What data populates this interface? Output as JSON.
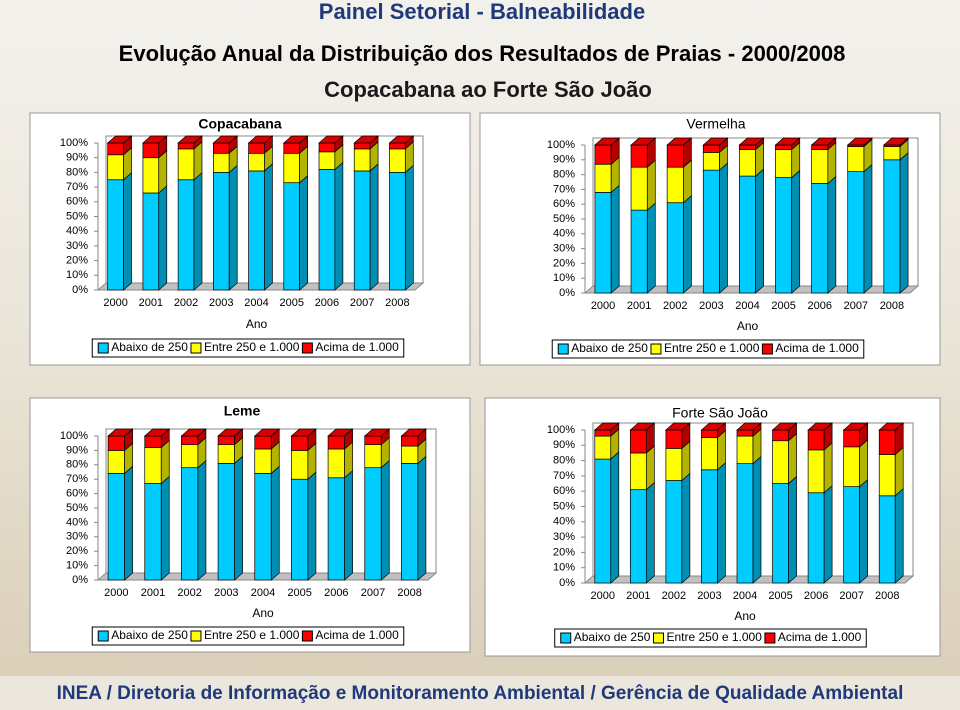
{
  "header": {
    "banner": "Painel Setorial - Balneabilidade",
    "title": "Evolução Anual da Distribuição dos Resultados de Praias - 2000/2008",
    "subtitle": "Copacabana ao Forte São João"
  },
  "footer": "INEA / Diretoria de Informação e Monitoramento Ambiental / Gerência de Qualidade Ambiental",
  "chart_data": [
    {
      "type": "bar",
      "stacked": true,
      "title": "Copacabana",
      "x_label": "Ano",
      "categories": [
        "2000",
        "2001",
        "2002",
        "2003",
        "2004",
        "2005",
        "2006",
        "2007",
        "2008"
      ],
      "series": [
        {
          "name": "Abaixo de 250",
          "color": "#00ccff",
          "values": [
            75,
            66,
            75,
            80,
            81,
            73,
            82,
            81,
            80
          ]
        },
        {
          "name": "Entre 250 e 1.000",
          "color": "#ffff00",
          "values": [
            17,
            24,
            21,
            13,
            12,
            20,
            12,
            15,
            16
          ]
        },
        {
          "name": "Acima de 1.000",
          "color": "#ff0000",
          "values": [
            8,
            10,
            4,
            7,
            7,
            7,
            6,
            4,
            4
          ]
        }
      ],
      "ylim": [
        0,
        100
      ],
      "yticks": [
        {
          "value": 0,
          "label": "0%"
        },
        {
          "value": 10,
          "label": "10%"
        },
        {
          "value": 20,
          "label": "20%"
        },
        {
          "value": 30,
          "label": "30%"
        },
        {
          "value": 40,
          "label": "40%"
        },
        {
          "value": 50,
          "label": "50%"
        },
        {
          "value": 60,
          "label": "60%"
        },
        {
          "value": 70,
          "label": "70%"
        },
        {
          "value": 80,
          "label": "80%"
        },
        {
          "value": 90,
          "label": "90%"
        },
        {
          "value": 100,
          "label": "100%"
        }
      ],
      "legend": "bottom"
    },
    {
      "type": "bar",
      "stacked": true,
      "title": "Vermelha",
      "x_label": "Ano",
      "categories": [
        "2000",
        "2001",
        "2002",
        "2003",
        "2004",
        "2005",
        "2006",
        "2007",
        "2008"
      ],
      "series": [
        {
          "name": "Abaixo de 250",
          "color": "#00ccff",
          "values": [
            68,
            56,
            61,
            83,
            79,
            78,
            74,
            82,
            90
          ]
        },
        {
          "name": "Entre 250 e 1.000",
          "color": "#ffff00",
          "values": [
            19,
            29,
            24,
            12,
            18,
            19,
            23,
            17,
            9
          ]
        },
        {
          "name": "Acima de 1.000",
          "color": "#ff0000",
          "values": [
            13,
            15,
            15,
            5,
            3,
            3,
            3,
            1,
            1
          ]
        }
      ],
      "ylim": [
        0,
        100
      ],
      "yticks": [
        {
          "value": 0,
          "label": "0%"
        },
        {
          "value": 10,
          "label": "10%"
        },
        {
          "value": 20,
          "label": "20%"
        },
        {
          "value": 30,
          "label": "30%"
        },
        {
          "value": 40,
          "label": "40%"
        },
        {
          "value": 50,
          "label": "50%"
        },
        {
          "value": 60,
          "label": "60%"
        },
        {
          "value": 70,
          "label": "70%"
        },
        {
          "value": 80,
          "label": "80%"
        },
        {
          "value": 90,
          "label": "90%"
        },
        {
          "value": 100,
          "label": "100%"
        }
      ],
      "legend": "bottom"
    },
    {
      "type": "bar",
      "stacked": true,
      "title": "Leme",
      "x_label": "Ano",
      "categories": [
        "2000",
        "2001",
        "2002",
        "2003",
        "2004",
        "2005",
        "2006",
        "2007",
        "2008"
      ],
      "series": [
        {
          "name": "Abaixo de 250",
          "color": "#00ccff",
          "values": [
            74,
            67,
            78,
            81,
            74,
            70,
            71,
            78,
            81
          ]
        },
        {
          "name": "Entre 250 e 1.000",
          "color": "#ffff00",
          "values": [
            16,
            25,
            16,
            13,
            17,
            20,
            20,
            16,
            12
          ]
        },
        {
          "name": "Acima de 1.000",
          "color": "#ff0000",
          "values": [
            10,
            8,
            6,
            6,
            9,
            10,
            9,
            6,
            7
          ]
        }
      ],
      "ylim": [
        0,
        100
      ],
      "yticks": [
        {
          "value": 0,
          "label": "0%"
        },
        {
          "value": 10,
          "label": "10%"
        },
        {
          "value": 20,
          "label": "20%"
        },
        {
          "value": 30,
          "label": "30%"
        },
        {
          "value": 40,
          "label": "40%"
        },
        {
          "value": 50,
          "label": "50%"
        },
        {
          "value": 60,
          "label": "60%"
        },
        {
          "value": 70,
          "label": "70%"
        },
        {
          "value": 80,
          "label": "80%"
        },
        {
          "value": 90,
          "label": "90%"
        },
        {
          "value": 100,
          "label": "100%"
        }
      ],
      "legend": "bottom"
    },
    {
      "type": "bar",
      "stacked": true,
      "title": "Forte São João",
      "x_label": "Ano",
      "categories": [
        "2000",
        "2001",
        "2002",
        "2003",
        "2004",
        "2005",
        "2006",
        "2007",
        "2008"
      ],
      "series": [
        {
          "name": "Abaixo de 250",
          "color": "#00ccff",
          "values": [
            81,
            61,
            67,
            74,
            78,
            65,
            59,
            63,
            57
          ]
        },
        {
          "name": "Entre 250 e 1.000",
          "color": "#ffff00",
          "values": [
            15,
            24,
            21,
            21,
            18,
            28,
            28,
            26,
            27
          ]
        },
        {
          "name": "Acima de 1.000",
          "color": "#ff0000",
          "values": [
            4,
            15,
            12,
            5,
            4,
            7,
            13,
            11,
            16
          ]
        }
      ],
      "ylim": [
        0,
        100
      ],
      "yticks": [
        {
          "value": 0,
          "label": "0%"
        },
        {
          "value": 10,
          "label": "10%"
        },
        {
          "value": 20,
          "label": "20%"
        },
        {
          "value": 30,
          "label": "30%"
        },
        {
          "value": 40,
          "label": "40%"
        },
        {
          "value": 50,
          "label": "50%"
        },
        {
          "value": 60,
          "label": "60%"
        },
        {
          "value": 70,
          "label": "70%"
        },
        {
          "value": 80,
          "label": "80%"
        },
        {
          "value": 90,
          "label": "90%"
        },
        {
          "value": 100,
          "label": "100%"
        }
      ],
      "legend": "bottom"
    }
  ]
}
